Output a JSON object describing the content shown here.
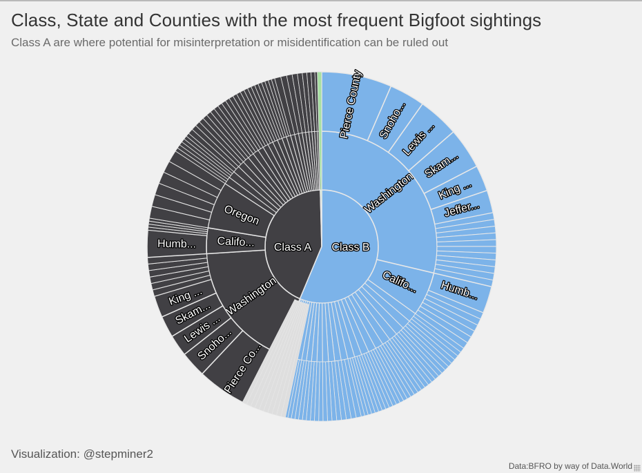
{
  "header": {
    "title": "Class, State and Counties with the most frequent Bigfoot sightings",
    "subtitle": "Class A are where potential for misinterpretation or misidentification can be ruled out"
  },
  "footer": {
    "credit": "Visualization: @stepminer2",
    "source": "Data:BFRO by way of Data.World"
  },
  "colors": {
    "class_a": "#414044",
    "class_b": "#7cb3e9",
    "class_c": "#a8e0a3",
    "stroke": "#e8e8e8",
    "background": "#f0f0f0",
    "small_segment": "#dedede"
  },
  "chart_data": {
    "type": "sunburst",
    "title": "Class, State and Counties with the most frequent Bigfoot sightings",
    "subtitle": "Class A are where potential for misinterpretation or misidentification can be ruled out",
    "rings": [
      "Class",
      "State",
      "County"
    ],
    "classes": [
      {
        "name": "Class B",
        "label": "Class B",
        "color": "#7cb3e9",
        "value": 56.3,
        "states": [
          {
            "name": "Washington",
            "label": "Washington",
            "value": 28.7,
            "counties": [
              {
                "name": "Pierce County",
                "label": "Pierce County",
                "value": 6.5
              },
              {
                "name": "Snohomish County",
                "label": "Snoho...",
                "value": 3.3
              },
              {
                "name": "Lewis County",
                "label": "Lewis ...",
                "value": 3.8
              },
              {
                "name": "Skamania County",
                "label": "Skam...",
                "value": 3.8
              },
              {
                "name": "King County",
                "label": "King ...",
                "value": 2.4
              },
              {
                "name": "Jefferson County",
                "label": "Jeffer...",
                "value": 2.1
              },
              {
                "name": "other",
                "label": "",
                "value": 6.8
              }
            ]
          },
          {
            "name": "California",
            "label": "Califo...",
            "value": 6.2,
            "counties": [
              {
                "name": "Humboldt County",
                "label": "Humb...",
                "value": 2.5
              },
              {
                "name": "other",
                "label": "",
                "value": 3.7
              }
            ]
          },
          {
            "name": "other states",
            "label": "",
            "value": 21.4,
            "segments": 26
          }
        ]
      },
      {
        "name": "Class A",
        "label": "Class A",
        "color": "#414044",
        "value": 43.3,
        "states": [
          {
            "name": "Washington",
            "label": "Washington",
            "value": 17.7,
            "counties": [
              {
                "name": "Pierce County",
                "label": "Pierce Co...",
                "value": 5.7
              },
              {
                "name": "Snohomish County",
                "label": "Snoho...",
                "value": 2.4
              },
              {
                "name": "Lewis County",
                "label": "Lewis ...",
                "value": 2.0
              },
              {
                "name": "Skamania County",
                "label": "Skam...",
                "value": 2.0
              },
              {
                "name": "King County",
                "label": "King ...",
                "value": 2.0
              },
              {
                "name": "other",
                "label": "",
                "value": 3.6
              }
            ]
          },
          {
            "name": "California",
            "label": "Califo...",
            "value": 3.6,
            "counties": [
              {
                "name": "Humboldt County",
                "label": "Humb...",
                "value": 2.5
              },
              {
                "name": "other",
                "label": "",
                "value": 1.1
              }
            ]
          },
          {
            "name": "Oregon",
            "label": "Oregon",
            "value": 6.6,
            "segments": 6
          },
          {
            "name": "other states",
            "label": "",
            "value": 15.4,
            "segments": 24
          }
        ]
      },
      {
        "name": "Class C",
        "label": "",
        "color": "#a8e0a3",
        "value": 0.4,
        "states": []
      }
    ]
  }
}
